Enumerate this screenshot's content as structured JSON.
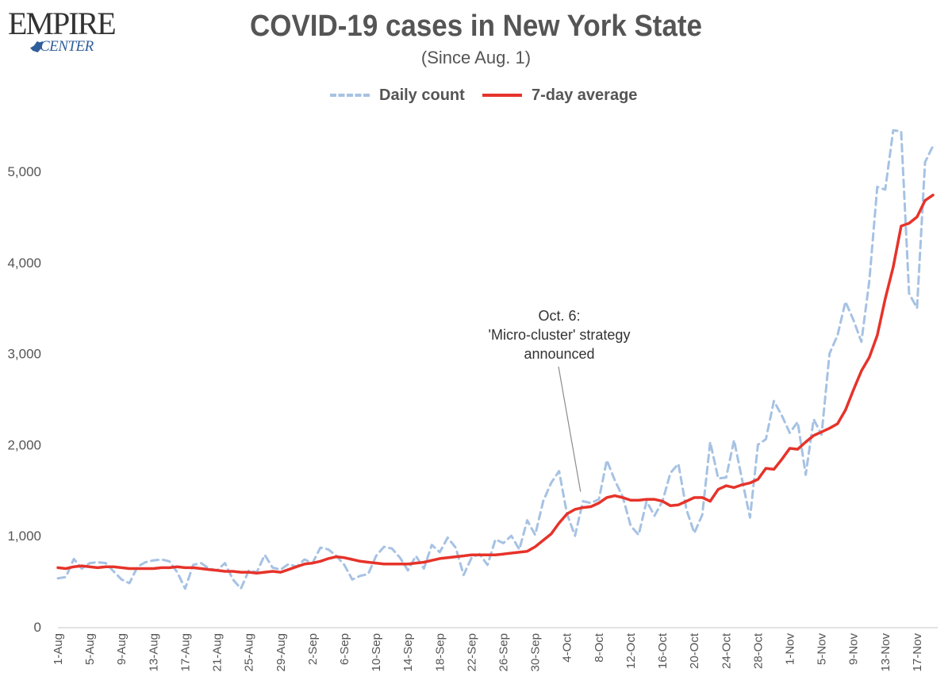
{
  "logo": {
    "top": "EMPIRE",
    "bottom": "CENTER"
  },
  "colors": {
    "daily": "#a6c2e3",
    "avg": "#e6332a",
    "text": "#555555",
    "axis": "#d9d9d9"
  },
  "chart_data": {
    "type": "line",
    "title": "COVID-19 cases in New York State",
    "subtitle": "(Since Aug. 1)",
    "ylim": [
      0,
      5600
    ],
    "yticks": [
      0,
      1000,
      2000,
      3000,
      4000,
      5000
    ],
    "ytick_labels": [
      "0",
      "1,000",
      "2,000",
      "3,000",
      "4,000",
      "5,000"
    ],
    "grid": false,
    "legend_position": "top",
    "x_tick_labels": [
      "1-Aug",
      "5-Aug",
      "9-Aug",
      "13-Aug",
      "17-Aug",
      "21-Aug",
      "25-Aug",
      "29-Aug",
      "2-Sep",
      "6-Sep",
      "10-Sep",
      "14-Sep",
      "18-Sep",
      "22-Sep",
      "26-Sep",
      "30-Sep",
      "4-Oct",
      "8-Oct",
      "12-Oct",
      "16-Oct",
      "20-Oct",
      "24-Oct",
      "28-Oct",
      "1-Nov",
      "5-Nov",
      "9-Nov",
      "13-Nov",
      "17-Nov"
    ],
    "x_tick_step": 4,
    "series": [
      {
        "name": "Daily count",
        "style": "dashed",
        "values": [
          533,
          547,
          746,
          640,
          700,
          710,
          700,
          610,
          520,
          480,
          660,
          710,
          730,
          740,
          720,
          600,
          420,
          680,
          700,
          640,
          620,
          700,
          520,
          420,
          620,
          600,
          790,
          650,
          630,
          690,
          660,
          740,
          700,
          870,
          850,
          780,
          680,
          520,
          560,
          580,
          780,
          880,
          860,
          760,
          620,
          780,
          640,
          900,
          820,
          980,
          870,
          570,
          760,
          800,
          680,
          960,
          920,
          1000,
          850,
          1170,
          1010,
          1380,
          1580,
          1710,
          1240,
          1000,
          1380,
          1360,
          1400,
          1830,
          1610,
          1430,
          1110,
          1010,
          1380,
          1220,
          1380,
          1690,
          1790,
          1290,
          1030,
          1230,
          2030,
          1630,
          1640,
          2050,
          1620,
          1200,
          2000,
          2060,
          2480,
          2320,
          2130,
          2250,
          1670,
          2280,
          2110,
          3000,
          3200,
          3570,
          3370,
          3130,
          3800,
          4830,
          4800,
          5450,
          5440,
          3660,
          3500,
          5100,
          5280
        ]
      },
      {
        "name": "7-day average",
        "style": "solid",
        "values": [
          650,
          640,
          660,
          670,
          660,
          650,
          660,
          660,
          650,
          640,
          640,
          640,
          640,
          650,
          650,
          660,
          650,
          650,
          640,
          630,
          620,
          610,
          610,
          600,
          600,
          590,
          600,
          610,
          600,
          630,
          660,
          690,
          700,
          720,
          750,
          770,
          760,
          740,
          720,
          710,
          700,
          690,
          690,
          690,
          690,
          700,
          710,
          730,
          750,
          760,
          770,
          780,
          790,
          790,
          790,
          790,
          800,
          810,
          820,
          830,
          880,
          950,
          1020,
          1140,
          1240,
          1290,
          1310,
          1320,
          1360,
          1420,
          1440,
          1420,
          1390,
          1390,
          1400,
          1400,
          1380,
          1330,
          1340,
          1380,
          1420,
          1420,
          1380,
          1510,
          1550,
          1530,
          1560,
          1580,
          1620,
          1740,
          1730,
          1840,
          1960,
          1950,
          2030,
          2100,
          2140,
          2180,
          2230,
          2380,
          2600,
          2810,
          2960,
          3200,
          3600,
          3950,
          4400,
          4430,
          4500,
          4680,
          4740
        ]
      }
    ],
    "annotation": {
      "lines": [
        "Oct. 6:",
        "'Micro-cluster' strategy",
        "announced"
      ],
      "target_index": 66
    }
  }
}
